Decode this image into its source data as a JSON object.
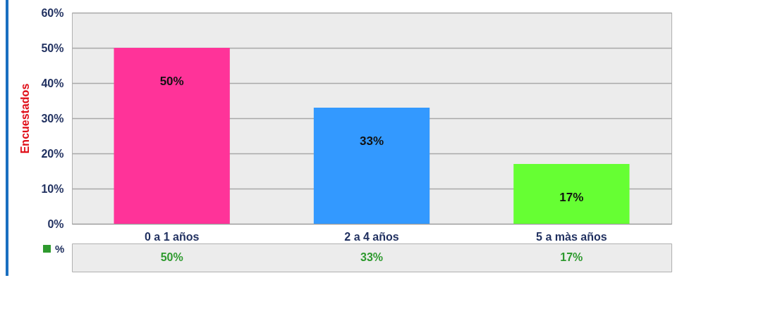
{
  "chart_data": {
    "type": "bar",
    "ylabel": "Encuestados",
    "categories": [
      "0 a 1 años",
      "2 a 4 años",
      "5 a màs años"
    ],
    "series": [
      {
        "name": "%",
        "color": "#2e9a2e",
        "colors": [
          "#ff3399",
          "#3399ff",
          "#66ff33"
        ],
        "values": [
          50,
          33,
          17
        ]
      }
    ],
    "value_labels": [
      "50%",
      "33%",
      "17%"
    ],
    "ylim": [
      0,
      60
    ],
    "yticks": [
      {
        "value": 0,
        "label": "0%"
      },
      {
        "value": 10,
        "label": "10%"
      },
      {
        "value": 20,
        "label": "20%"
      },
      {
        "value": 30,
        "label": "30%"
      },
      {
        "value": 40,
        "label": "40%"
      },
      {
        "value": 50,
        "label": "50%"
      },
      {
        "value": 60,
        "label": "60%"
      }
    ],
    "grid": "y",
    "legend": "bottom left"
  }
}
